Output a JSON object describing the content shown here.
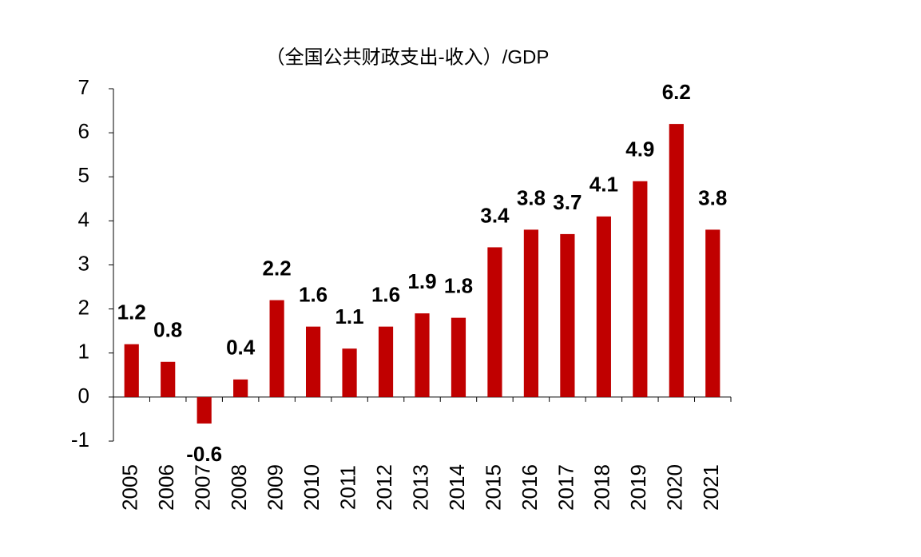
{
  "chart_data": {
    "type": "bar",
    "title": "（全国公共财政支出-收入）/GDP",
    "categories": [
      "2005",
      "2006",
      "2007",
      "2008",
      "2009",
      "2010",
      "2011",
      "2012",
      "2013",
      "2014",
      "2015",
      "2016",
      "2017",
      "2018",
      "2019",
      "2020",
      "2021"
    ],
    "values": [
      1.2,
      0.8,
      -0.6,
      0.4,
      2.2,
      1.6,
      1.1,
      1.6,
      1.9,
      1.8,
      3.4,
      3.8,
      3.7,
      4.1,
      4.9,
      6.2,
      3.8
    ],
    "color": "#c00000",
    "ylim": [
      -1,
      7
    ],
    "yticks": [
      -1,
      0,
      1,
      2,
      3,
      4,
      5,
      6,
      7
    ],
    "grid": false
  }
}
